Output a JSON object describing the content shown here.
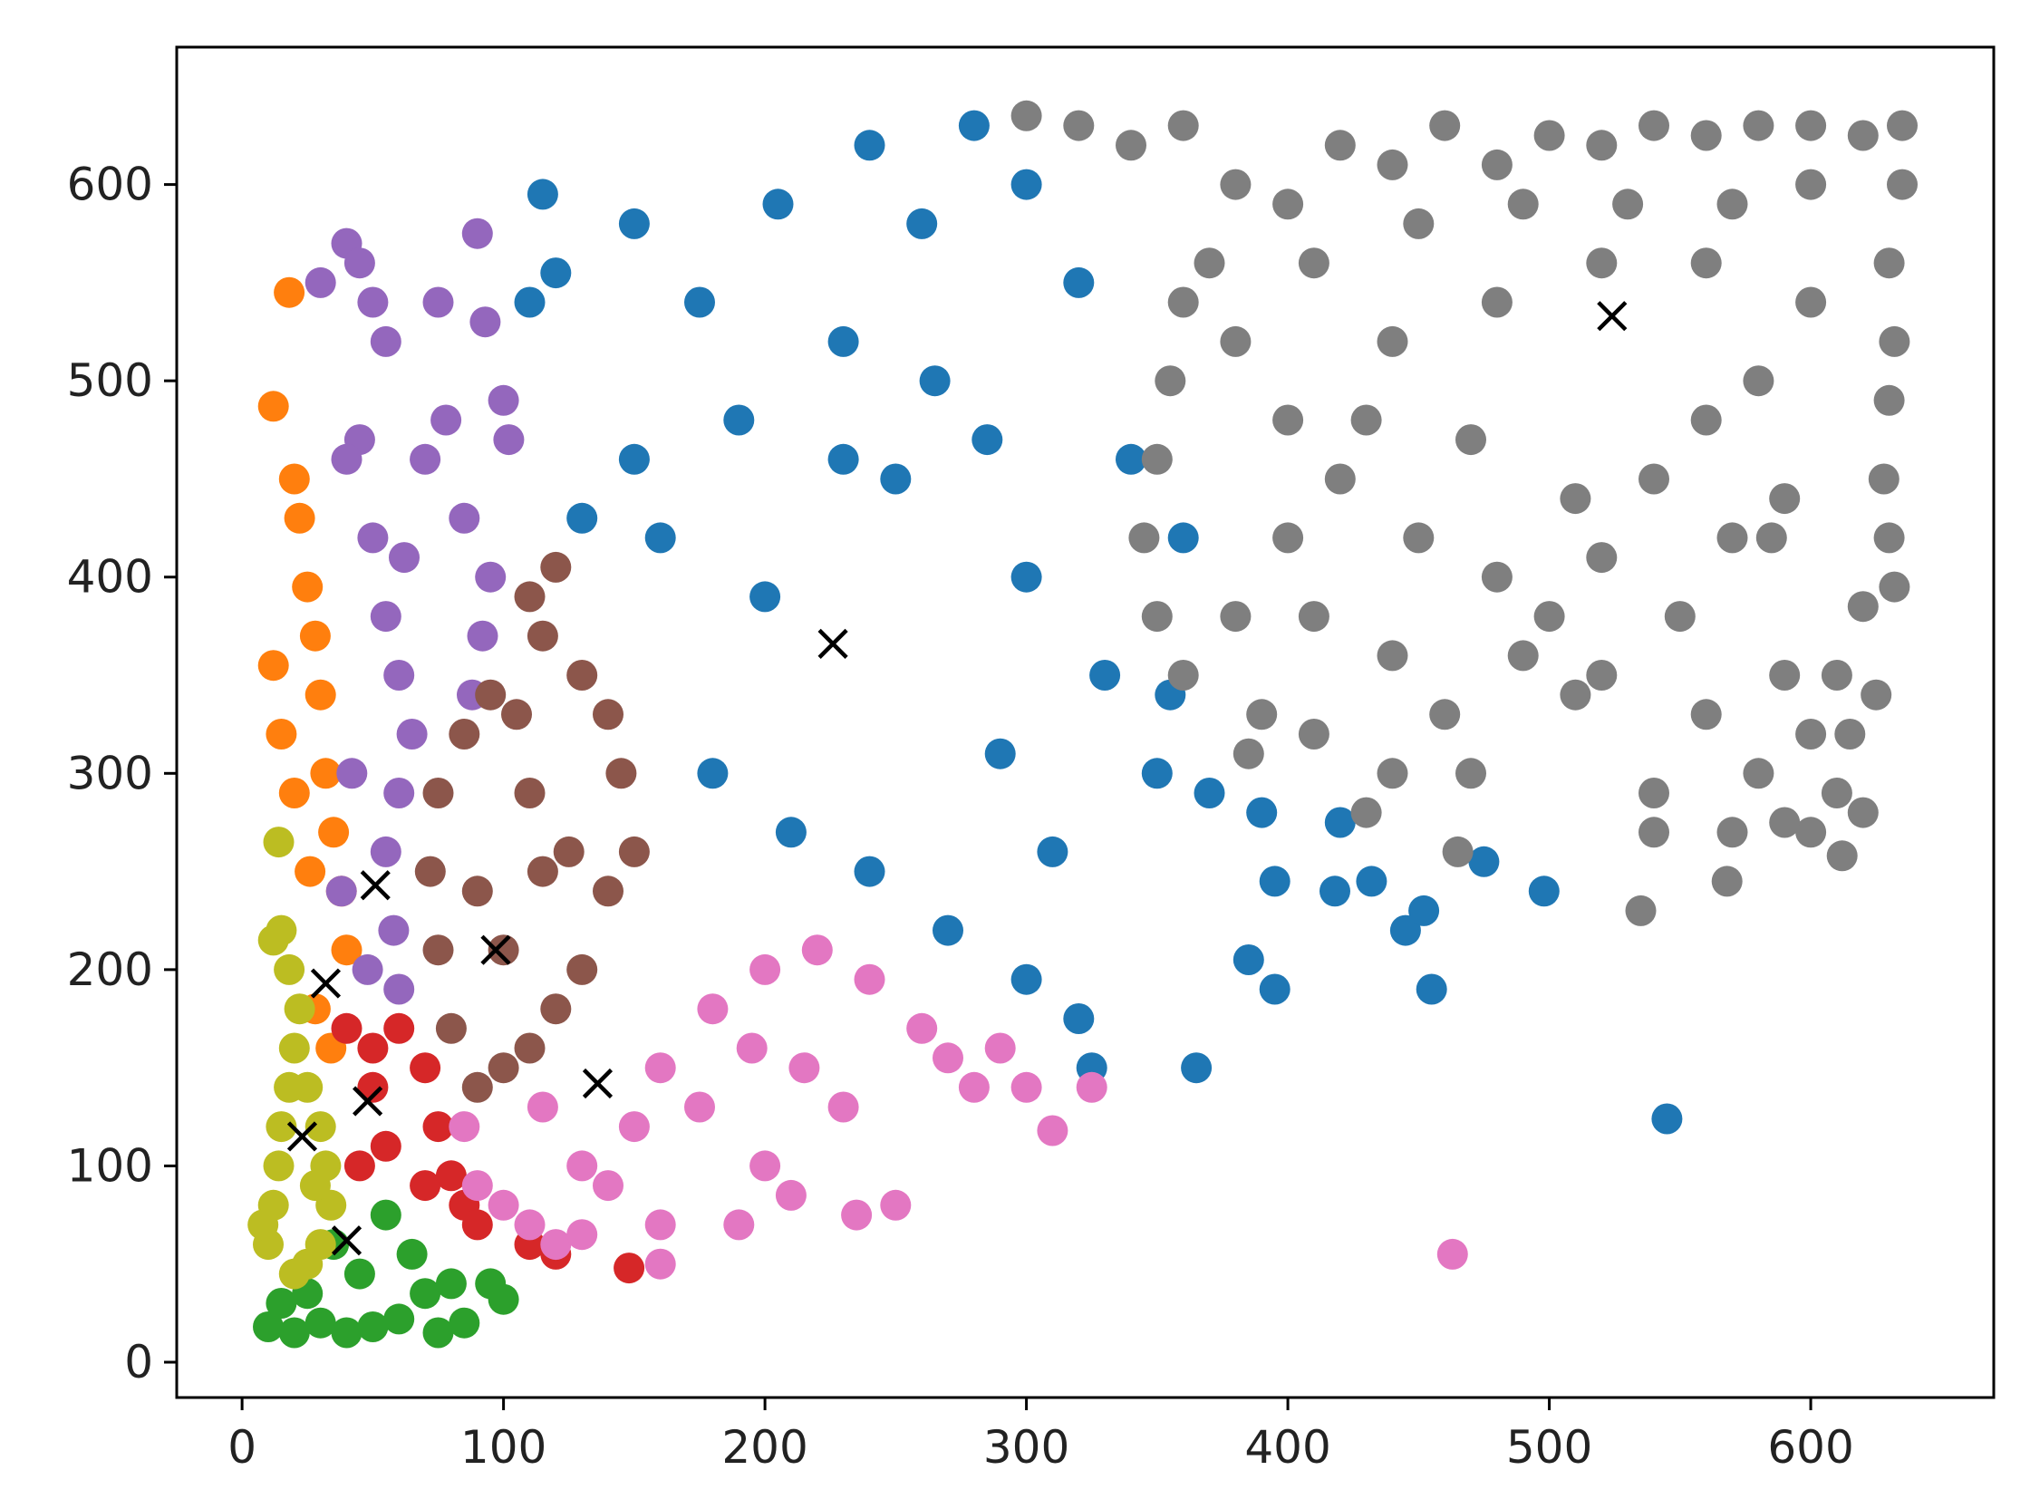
{
  "chart_data": {
    "type": "scatter",
    "title": "",
    "xlabel": "",
    "ylabel": "",
    "xlim": [
      -25,
      670
    ],
    "ylim": [
      -18,
      670
    ],
    "grid": false,
    "legend": "none",
    "xticks": [
      0,
      100,
      200,
      300,
      400,
      500,
      600
    ],
    "xtick_labels": [
      "0",
      "100",
      "200",
      "300",
      "400",
      "500",
      "600"
    ],
    "yticks": [
      0,
      100,
      200,
      300,
      400,
      500,
      600
    ],
    "ytick_labels": [
      "0",
      "100",
      "200",
      "300",
      "400",
      "500",
      "600"
    ],
    "clusters": [
      {
        "color": "#1f77b4",
        "centroid": [
          226,
          366
        ],
        "points": [
          [
            180,
            300
          ],
          [
            210,
            270
          ],
          [
            160,
            420
          ],
          [
            190,
            480
          ],
          [
            230,
            520
          ],
          [
            260,
            580
          ],
          [
            240,
            620
          ],
          [
            280,
            630
          ],
          [
            300,
            600
          ],
          [
            320,
            550
          ],
          [
            250,
            450
          ],
          [
            200,
            390
          ],
          [
            300,
            400
          ],
          [
            330,
            350
          ],
          [
            350,
            300
          ],
          [
            310,
            260
          ],
          [
            270,
            220
          ],
          [
            240,
            250
          ],
          [
            290,
            310
          ],
          [
            150,
            460
          ],
          [
            130,
            430
          ],
          [
            175,
            540
          ],
          [
            205,
            590
          ],
          [
            230,
            460
          ],
          [
            265,
            500
          ],
          [
            285,
            470
          ],
          [
            340,
            460
          ],
          [
            360,
            420
          ],
          [
            355,
            340
          ],
          [
            370,
            290
          ],
          [
            390,
            280
          ],
          [
            395,
            245
          ],
          [
            420,
            275
          ],
          [
            418,
            240
          ],
          [
            432,
            245
          ],
          [
            445,
            220
          ],
          [
            452,
            230
          ],
          [
            455,
            190
          ],
          [
            385,
            205
          ],
          [
            395,
            190
          ],
          [
            475,
            255
          ],
          [
            498,
            240
          ],
          [
            300,
            195
          ],
          [
            320,
            175
          ],
          [
            325,
            150
          ],
          [
            365,
            150
          ],
          [
            545,
            124
          ],
          [
            115,
            595
          ],
          [
            120,
            555
          ],
          [
            110,
            540
          ],
          [
            150,
            580
          ]
        ]
      },
      {
        "color": "#ff7f0e",
        "centroid": [
          32,
          193
        ],
        "points": [
          [
            18,
            545
          ],
          [
            12,
            487
          ],
          [
            20,
            450
          ],
          [
            22,
            430
          ],
          [
            25,
            395
          ],
          [
            28,
            370
          ],
          [
            30,
            340
          ],
          [
            32,
            300
          ],
          [
            35,
            270
          ],
          [
            38,
            240
          ],
          [
            40,
            210
          ],
          [
            28,
            180
          ],
          [
            34,
            160
          ],
          [
            12,
            355
          ],
          [
            15,
            320
          ],
          [
            20,
            290
          ],
          [
            26,
            250
          ]
        ]
      },
      {
        "color": "#2ca02c",
        "centroid": [
          40,
          62
        ],
        "points": [
          [
            10,
            18
          ],
          [
            20,
            15
          ],
          [
            30,
            20
          ],
          [
            40,
            15
          ],
          [
            50,
            18
          ],
          [
            60,
            22
          ],
          [
            70,
            35
          ],
          [
            80,
            40
          ],
          [
            55,
            75
          ],
          [
            35,
            60
          ],
          [
            25,
            35
          ],
          [
            45,
            45
          ],
          [
            65,
            55
          ],
          [
            85,
            20
          ],
          [
            95,
            40
          ],
          [
            100,
            32
          ],
          [
            75,
            15
          ],
          [
            15,
            30
          ]
        ]
      },
      {
        "color": "#d62728",
        "centroid": [
          48,
          133
        ],
        "points": [
          [
            40,
            170
          ],
          [
            50,
            160
          ],
          [
            60,
            170
          ],
          [
            70,
            150
          ],
          [
            75,
            120
          ],
          [
            80,
            95
          ],
          [
            85,
            80
          ],
          [
            90,
            70
          ],
          [
            70,
            90
          ],
          [
            55,
            110
          ],
          [
            50,
            140
          ],
          [
            45,
            100
          ],
          [
            120,
            55
          ],
          [
            148,
            48
          ],
          [
            110,
            60
          ]
        ]
      },
      {
        "color": "#9467bd",
        "centroid": [
          51,
          243
        ],
        "points": [
          [
            30,
            550
          ],
          [
            40,
            570
          ],
          [
            45,
            560
          ],
          [
            50,
            540
          ],
          [
            55,
            520
          ],
          [
            45,
            470
          ],
          [
            50,
            420
          ],
          [
            55,
            380
          ],
          [
            60,
            350
          ],
          [
            65,
            320
          ],
          [
            60,
            290
          ],
          [
            55,
            260
          ],
          [
            58,
            220
          ],
          [
            60,
            190
          ],
          [
            70,
            460
          ],
          [
            78,
            480
          ],
          [
            85,
            430
          ],
          [
            90,
            575
          ],
          [
            93,
            530
          ],
          [
            100,
            490
          ],
          [
            102,
            470
          ],
          [
            95,
            400
          ],
          [
            92,
            370
          ],
          [
            88,
            340
          ],
          [
            75,
            540
          ],
          [
            40,
            460
          ],
          [
            42,
            300
          ],
          [
            48,
            200
          ],
          [
            38,
            240
          ],
          [
            62,
            410
          ]
        ]
      },
      {
        "color": "#8c564b",
        "centroid": [
          97,
          210
        ],
        "points": [
          [
            110,
            390
          ],
          [
            120,
            405
          ],
          [
            115,
            370
          ],
          [
            130,
            350
          ],
          [
            140,
            330
          ],
          [
            145,
            300
          ],
          [
            150,
            260
          ],
          [
            140,
            240
          ],
          [
            130,
            200
          ],
          [
            120,
            180
          ],
          [
            110,
            160
          ],
          [
            100,
            150
          ],
          [
            90,
            140
          ],
          [
            80,
            170
          ],
          [
            75,
            210
          ],
          [
            72,
            250
          ],
          [
            75,
            290
          ],
          [
            85,
            320
          ],
          [
            95,
            340
          ],
          [
            105,
            330
          ],
          [
            110,
            290
          ],
          [
            115,
            250
          ],
          [
            100,
            210
          ],
          [
            90,
            240
          ],
          [
            125,
            260
          ]
        ]
      },
      {
        "color": "#e377c2",
        "centroid": [
          136,
          142
        ],
        "points": [
          [
            85,
            120
          ],
          [
            90,
            90
          ],
          [
            100,
            80
          ],
          [
            110,
            70
          ],
          [
            120,
            60
          ],
          [
            130,
            65
          ],
          [
            140,
            90
          ],
          [
            150,
            120
          ],
          [
            160,
            150
          ],
          [
            180,
            180
          ],
          [
            200,
            200
          ],
          [
            220,
            210
          ],
          [
            240,
            195
          ],
          [
            260,
            170
          ],
          [
            270,
            155
          ],
          [
            280,
            140
          ],
          [
            290,
            160
          ],
          [
            300,
            140
          ],
          [
            310,
            118
          ],
          [
            325,
            140
          ],
          [
            200,
            100
          ],
          [
            190,
            70
          ],
          [
            210,
            85
          ],
          [
            235,
            75
          ],
          [
            250,
            80
          ],
          [
            160,
            50
          ],
          [
            160,
            70
          ],
          [
            463,
            55
          ],
          [
            175,
            130
          ],
          [
            195,
            160
          ],
          [
            215,
            150
          ],
          [
            230,
            130
          ],
          [
            130,
            100
          ],
          [
            115,
            130
          ]
        ]
      },
      {
        "color": "#7f7f7f",
        "centroid": [
          524,
          533
        ],
        "points": [
          [
            300,
            635
          ],
          [
            320,
            630
          ],
          [
            340,
            620
          ],
          [
            360,
            630
          ],
          [
            380,
            600
          ],
          [
            400,
            590
          ],
          [
            420,
            620
          ],
          [
            440,
            610
          ],
          [
            460,
            630
          ],
          [
            480,
            610
          ],
          [
            500,
            625
          ],
          [
            520,
            620
          ],
          [
            540,
            630
          ],
          [
            560,
            625
          ],
          [
            580,
            630
          ],
          [
            600,
            630
          ],
          [
            620,
            625
          ],
          [
            635,
            630
          ],
          [
            635,
            600
          ],
          [
            630,
            560
          ],
          [
            632,
            520
          ],
          [
            630,
            490
          ],
          [
            628,
            450
          ],
          [
            630,
            420
          ],
          [
            632,
            395
          ],
          [
            620,
            385
          ],
          [
            610,
            350
          ],
          [
            615,
            320
          ],
          [
            610,
            290
          ],
          [
            620,
            280
          ],
          [
            612,
            258
          ],
          [
            600,
            270
          ],
          [
            590,
            275
          ],
          [
            580,
            300
          ],
          [
            570,
            270
          ],
          [
            568,
            245
          ],
          [
            560,
            330
          ],
          [
            540,
            290
          ],
          [
            540,
            270
          ],
          [
            535,
            230
          ],
          [
            520,
            350
          ],
          [
            510,
            340
          ],
          [
            470,
            300
          ],
          [
            465,
            260
          ],
          [
            460,
            330
          ],
          [
            440,
            300
          ],
          [
            430,
            280
          ],
          [
            410,
            320
          ],
          [
            390,
            330
          ],
          [
            385,
            310
          ],
          [
            360,
            350
          ],
          [
            350,
            380
          ],
          [
            345,
            420
          ],
          [
            350,
            460
          ],
          [
            355,
            500
          ],
          [
            360,
            540
          ],
          [
            370,
            560
          ],
          [
            380,
            520
          ],
          [
            400,
            480
          ],
          [
            420,
            450
          ],
          [
            450,
            420
          ],
          [
            480,
            400
          ],
          [
            500,
            380
          ],
          [
            520,
            410
          ],
          [
            540,
            450
          ],
          [
            560,
            480
          ],
          [
            580,
            500
          ],
          [
            600,
            540
          ],
          [
            560,
            560
          ],
          [
            520,
            560
          ],
          [
            480,
            540
          ],
          [
            440,
            520
          ],
          [
            410,
            560
          ],
          [
            450,
            580
          ],
          [
            490,
            590
          ],
          [
            530,
            590
          ],
          [
            570,
            590
          ],
          [
            600,
            600
          ],
          [
            590,
            440
          ],
          [
            570,
            420
          ],
          [
            550,
            380
          ],
          [
            510,
            440
          ],
          [
            470,
            470
          ],
          [
            430,
            480
          ],
          [
            400,
            420
          ],
          [
            380,
            380
          ],
          [
            410,
            380
          ],
          [
            440,
            360
          ],
          [
            490,
            360
          ],
          [
            590,
            350
          ],
          [
            600,
            320
          ],
          [
            625,
            340
          ],
          [
            585,
            420
          ]
        ]
      },
      {
        "color": "#bcbd22",
        "centroid": [
          23,
          115
        ],
        "points": [
          [
            10,
            60
          ],
          [
            12,
            80
          ],
          [
            14,
            100
          ],
          [
            15,
            120
          ],
          [
            18,
            140
          ],
          [
            20,
            160
          ],
          [
            22,
            180
          ],
          [
            18,
            200
          ],
          [
            15,
            220
          ],
          [
            14,
            265
          ],
          [
            25,
            140
          ],
          [
            30,
            120
          ],
          [
            32,
            100
          ],
          [
            34,
            80
          ],
          [
            30,
            60
          ],
          [
            25,
            50
          ],
          [
            20,
            45
          ],
          [
            12,
            215
          ],
          [
            28,
            90
          ],
          [
            8,
            70
          ]
        ]
      }
    ]
  }
}
